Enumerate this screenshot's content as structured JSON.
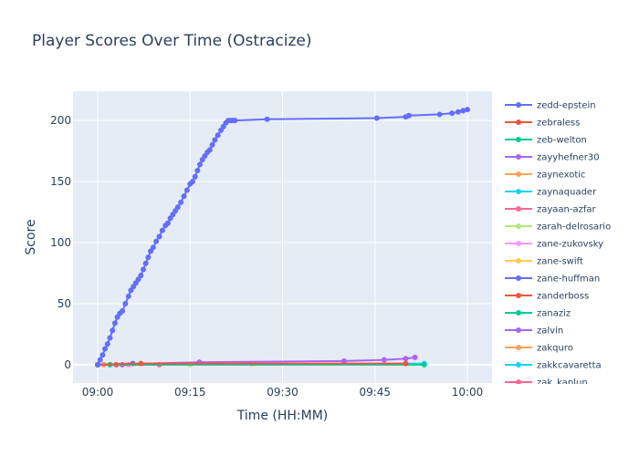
{
  "chart_data": {
    "type": "line",
    "title": "Player Scores Over Time (Ostracize)",
    "xlabel": "Time (HH:MM)",
    "ylabel": "Score",
    "xlim_minutes": [
      -4,
      64
    ],
    "ylim": [
      -15,
      224
    ],
    "x_ticks": [
      {
        "m": 0,
        "label": "09:00"
      },
      {
        "m": 15,
        "label": "09:15"
      },
      {
        "m": 30,
        "label": "09:30"
      },
      {
        "m": 45,
        "label": "09:45"
      },
      {
        "m": 60,
        "label": "10:00"
      }
    ],
    "y_ticks": [
      0,
      50,
      100,
      150,
      200
    ],
    "grid": true,
    "legend_position": "right",
    "colors": {
      "plot_bg": "#e5ecf6",
      "grid": "#ffffff",
      "palette": [
        "#636efa",
        "#ef553b",
        "#00cc96",
        "#ab63fa",
        "#ffa15a",
        "#19d3f3",
        "#ff6692",
        "#b6e880",
        "#ff97ff",
        "#fecb52"
      ]
    },
    "series": [
      {
        "name": "zedd-epstein",
        "color": "#636efa",
        "x": [
          0,
          0.4,
          0.8,
          1.2,
          1.6,
          2.0,
          2.4,
          2.8,
          3.2,
          3.6,
          4.0,
          4.5,
          5.0,
          5.4,
          5.8,
          6.2,
          6.6,
          7.0,
          7.4,
          7.8,
          8.2,
          8.6,
          9.0,
          9.5,
          10.0,
          10.5,
          11.0,
          11.4,
          11.8,
          12.2,
          12.6,
          13.0,
          13.5,
          14.0,
          14.5,
          15.0,
          15.4,
          15.8,
          16.2,
          16.6,
          17.0,
          17.4,
          17.8,
          18.2,
          18.6,
          19.0,
          19.5,
          20.0,
          20.4,
          20.8,
          21.2,
          21.6,
          22.0,
          22.3,
          27.5,
          45.3,
          50.0,
          50.5,
          55.5,
          57.5,
          58.5,
          59.3,
          60.0
        ],
        "values": [
          0,
          4,
          8,
          13,
          17,
          22,
          28,
          34,
          39,
          42,
          44,
          50,
          56,
          61,
          64,
          67,
          70,
          73,
          78,
          83,
          88,
          93,
          96,
          101,
          105,
          110,
          114,
          116,
          120,
          123,
          126,
          129,
          133,
          138,
          143,
          148,
          150,
          154,
          159,
          164,
          168,
          171,
          174,
          176,
          180,
          184,
          188,
          192,
          195,
          198,
          200,
          200,
          200,
          200,
          201,
          202,
          203,
          204,
          205,
          206,
          207,
          208,
          209
        ]
      },
      {
        "name": "zebraless",
        "color": "#ef553b",
        "x": [
          0,
          7,
          50
        ],
        "values": [
          0,
          1,
          1
        ]
      },
      {
        "name": "zeb-welton",
        "color": "#00cc96",
        "x": [
          0,
          53
        ],
        "values": [
          0,
          0
        ]
      },
      {
        "name": "zayyhefner30",
        "color": "#ab63fa",
        "x": [
          0,
          16.5,
          40,
          46.5,
          50,
          51.5
        ],
        "values": [
          0,
          2,
          3,
          4,
          5,
          6
        ]
      },
      {
        "name": "zaynexotic",
        "color": "#ffa15a",
        "x": [
          0,
          25
        ],
        "values": [
          0,
          1
        ]
      },
      {
        "name": "zaynaquader",
        "color": "#19d3f3",
        "x": [
          0,
          53
        ],
        "values": [
          0,
          1
        ]
      },
      {
        "name": "zayaan-azfar",
        "color": "#ff6692",
        "x": [
          0,
          10
        ],
        "values": [
          0,
          0
        ]
      },
      {
        "name": "zarah-delrosario",
        "color": "#b6e880",
        "x": [
          0,
          15
        ],
        "values": [
          0,
          0
        ]
      },
      {
        "name": "zane-zukovsky",
        "color": "#ff97ff",
        "x": [
          0,
          5
        ],
        "values": [
          0,
          0
        ]
      },
      {
        "name": "zane-swift",
        "color": "#fecb52",
        "x": [
          0,
          25.5
        ],
        "values": [
          0,
          1
        ]
      },
      {
        "name": "zane-huffman",
        "color": "#636efa",
        "x": [
          0,
          5.7
        ],
        "values": [
          0,
          1
        ]
      },
      {
        "name": "zanderboss",
        "color": "#ef553b",
        "x": [
          0,
          3
        ],
        "values": [
          0,
          0
        ]
      },
      {
        "name": "zanaziz",
        "color": "#00cc96",
        "x": [
          0,
          2
        ],
        "values": [
          0,
          0
        ]
      },
      {
        "name": "zalvin",
        "color": "#ab63fa",
        "x": [
          0,
          4
        ],
        "values": [
          0,
          0
        ]
      },
      {
        "name": "zakquro",
        "color": "#ffa15a",
        "x": [
          0,
          1
        ],
        "values": [
          0,
          0
        ]
      },
      {
        "name": "zakkcavaretta",
        "color": "#19d3f3",
        "x": [
          0,
          2
        ],
        "values": [
          0,
          0
        ]
      },
      {
        "name": "zak_kaplun",
        "color": "#ff6692",
        "x": [
          0,
          1
        ],
        "values": [
          0,
          0
        ]
      }
    ]
  }
}
